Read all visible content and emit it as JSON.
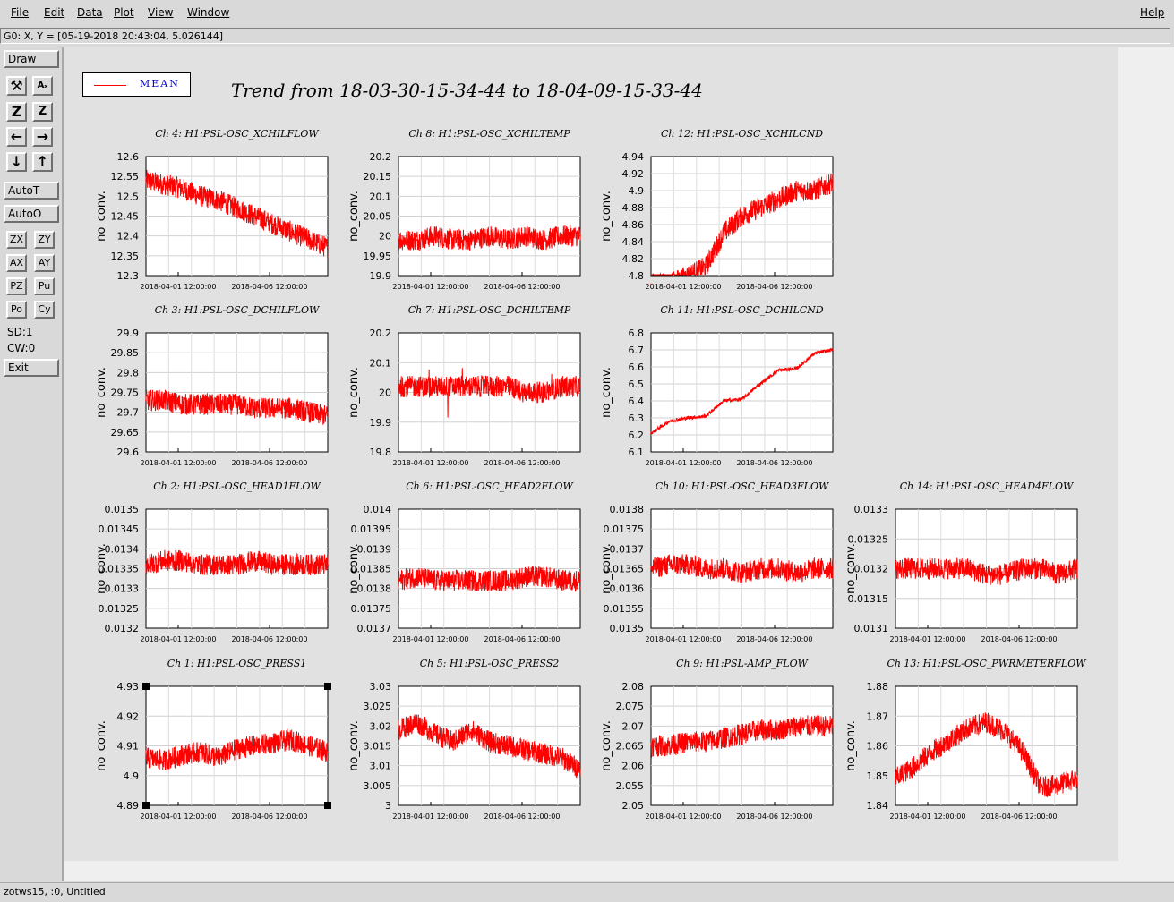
{
  "menubar": {
    "items": [
      "File",
      "Edit",
      "Data",
      "Plot",
      "View",
      "Window"
    ],
    "help": "Help"
  },
  "status": {
    "cursor_readout": "G0: X, Y = [05-19-2018 20:43:04, 5.026144]",
    "bottom": "zotws15, :0, Untitled"
  },
  "toolbar": {
    "draw": "Draw",
    "autot": "AutoT",
    "autoo": "AutoO",
    "small_buttons": [
      "ZX",
      "ZY",
      "AX",
      "AY",
      "PZ",
      "Pu",
      "Po",
      "Cy"
    ],
    "sd": "SD:1",
    "cw": "CW:0",
    "exit": "Exit",
    "icons": [
      "wrench-icon",
      "text-style-icon",
      "zoom-in-icon",
      "zoom-out-icon",
      "arrow-left-icon",
      "arrow-right-icon",
      "arrow-down-icon",
      "arrow-up-icon"
    ]
  },
  "legend": {
    "label": "MEAN",
    "color": "#ff0000"
  },
  "main_title": "Trend from 18-03-30-15-34-44 to 18-04-09-15-33-44",
  "colors": {
    "trace": "#ff0000",
    "accent": "#0000cc"
  },
  "chart_data": [
    {
      "type": "line",
      "title": "Ch 4: H1:PSL-OSC_XCHILFLOW",
      "ylabel": "no_conv.",
      "yticks": [
        "12.6",
        "12.55",
        "12.5",
        "12.45",
        "12.4",
        "12.35",
        "12.3"
      ],
      "ylim": [
        12.3,
        12.6
      ],
      "xticks": [
        "2018-04-01 12:00:00",
        "2018-04-06 12:00:00"
      ],
      "shape": "decline",
      "series": [
        {
          "name": "MEAN",
          "values": [
            12.54,
            12.53,
            12.52,
            12.5,
            12.49,
            12.47,
            12.45,
            12.43,
            12.41,
            12.39,
            12.37
          ]
        }
      ]
    },
    {
      "type": "line",
      "title": "Ch 8: H1:PSL-OSC_XCHILTEMP",
      "ylabel": "no_conv.",
      "yticks": [
        "20.2",
        "20.15",
        "20.1",
        "20.05",
        "20",
        "19.95",
        "19.9"
      ],
      "ylim": [
        19.9,
        20.2
      ],
      "xticks": [
        "2018-04-01 12:00:00",
        "2018-04-06 12:00:00"
      ],
      "shape": "flat",
      "series": [
        {
          "name": "MEAN",
          "values": [
            19.99,
            19.99,
            20.0,
            19.99,
            19.99,
            20.0,
            19.99,
            20.0,
            19.99,
            20.0,
            20.0
          ]
        }
      ]
    },
    {
      "type": "line",
      "title": "Ch 12: H1:PSL-OSC_XCHILCND",
      "ylabel": "no_conv.",
      "yticks": [
        "4.94",
        "4.92",
        "4.9",
        "4.88",
        "4.86",
        "4.84",
        "4.82",
        "4.8"
      ],
      "ylim": [
        4.8,
        4.94
      ],
      "xticks": [
        "2018-04-01 12:00:00",
        "2018-04-06 12:00:00"
      ],
      "shape": "rise",
      "series": [
        {
          "name": "MEAN",
          "values": [
            4.79,
            4.79,
            4.8,
            4.81,
            4.85,
            4.87,
            4.88,
            4.89,
            4.9,
            4.9,
            4.91
          ]
        }
      ]
    },
    {
      "type": "line",
      "title": "Ch 3: H1:PSL-OSC_DCHILFLOW",
      "ylabel": "no_conv.",
      "yticks": [
        "29.9",
        "29.85",
        "29.8",
        "29.75",
        "29.7",
        "29.65",
        "29.6"
      ],
      "ylim": [
        29.6,
        29.9
      ],
      "xticks": [
        "2018-04-01 12:00:00",
        "2018-04-06 12:00:00"
      ],
      "shape": "flat-down",
      "series": [
        {
          "name": "MEAN",
          "values": [
            29.73,
            29.73,
            29.72,
            29.72,
            29.72,
            29.72,
            29.71,
            29.71,
            29.71,
            29.7,
            29.69
          ]
        }
      ]
    },
    {
      "type": "line",
      "title": "Ch 7: H1:PSL-OSC_DCHILTEMP",
      "ylabel": "no_conv.",
      "yticks": [
        "20.2",
        "20.1",
        "20",
        "19.9",
        "19.8"
      ],
      "ylim": [
        19.8,
        20.2
      ],
      "xticks": [
        "2018-04-01 12:00:00",
        "2018-04-06 12:00:00"
      ],
      "shape": "spiky",
      "series": [
        {
          "name": "MEAN",
          "values": [
            20.02,
            20.02,
            20.02,
            20.02,
            20.02,
            20.02,
            20.02,
            20.0,
            20.0,
            20.02,
            20.02
          ]
        }
      ]
    },
    {
      "type": "line",
      "title": "Ch 11: H1:PSL-OSC_DCHILCND",
      "ylabel": "no_conv.",
      "yticks": [
        "6.8",
        "6.7",
        "6.6",
        "6.5",
        "6.4",
        "6.3",
        "6.2",
        "6.1"
      ],
      "ylim": [
        6.1,
        6.8
      ],
      "xticks": [
        "2018-04-01 12:00:00",
        "2018-04-06 12:00:00"
      ],
      "shape": "steps",
      "series": [
        {
          "name": "MEAN",
          "values": [
            6.21,
            6.28,
            6.3,
            6.31,
            6.4,
            6.41,
            6.5,
            6.58,
            6.59,
            6.68,
            6.7
          ]
        }
      ]
    },
    {
      "type": "line",
      "title": "Ch 2: H1:PSL-OSC_HEAD1FLOW",
      "ylabel": "no_conv.",
      "yticks": [
        "0.0135",
        "0.01345",
        "0.0134",
        "0.01335",
        "0.0133",
        "0.01325",
        "0.0132"
      ],
      "ylim": [
        0.0132,
        0.0135
      ],
      "xticks": [
        "2018-04-01 12:00:00",
        "2018-04-06 12:00:00"
      ],
      "shape": "noise",
      "series": [
        {
          "name": "MEAN",
          "values": [
            0.01336,
            0.01337,
            0.01337,
            0.01336,
            0.01336,
            0.01336,
            0.01337,
            0.01336,
            0.01336,
            0.01336,
            0.01336
          ]
        }
      ]
    },
    {
      "type": "line",
      "title": "Ch 6: H1:PSL-OSC_HEAD2FLOW",
      "ylabel": "no_conv.",
      "yticks": [
        "0.014",
        "0.01395",
        "0.0139",
        "0.01385",
        "0.0138",
        "0.01375",
        "0.0137"
      ],
      "ylim": [
        0.0137,
        0.014
      ],
      "xticks": [
        "2018-04-01 12:00:00",
        "2018-04-06 12:00:00"
      ],
      "shape": "noise",
      "series": [
        {
          "name": "MEAN",
          "values": [
            0.01382,
            0.01383,
            0.01382,
            0.01382,
            0.01382,
            0.01382,
            0.01382,
            0.01383,
            0.01383,
            0.01382,
            0.01382
          ]
        }
      ]
    },
    {
      "type": "line",
      "title": "Ch 10: H1:PSL-OSC_HEAD3FLOW",
      "ylabel": "no_conv.",
      "yticks": [
        "0.0138",
        "0.01375",
        "0.0137",
        "0.01365",
        "0.0136",
        "0.01355",
        "0.0135"
      ],
      "ylim": [
        0.0135,
        0.0138
      ],
      "xticks": [
        "2018-04-01 12:00:00",
        "2018-04-06 12:00:00"
      ],
      "shape": "noise",
      "series": [
        {
          "name": "MEAN",
          "values": [
            0.01365,
            0.01366,
            0.01366,
            0.01365,
            0.01365,
            0.01364,
            0.01365,
            0.01365,
            0.01364,
            0.01365,
            0.01365
          ]
        }
      ]
    },
    {
      "type": "line",
      "title": "Ch 14: H1:PSL-OSC_HEAD4FLOW",
      "ylabel": "no_conv.",
      "yticks": [
        "0.0133",
        "0.01325",
        "0.0132",
        "0.01315",
        "0.0131"
      ],
      "ylim": [
        0.0131,
        0.0133
      ],
      "xticks": [
        "2018-04-01 12:00:00",
        "2018-04-06 12:00:00"
      ],
      "shape": "noise",
      "series": [
        {
          "name": "MEAN",
          "values": [
            0.0132,
            0.0132,
            0.0132,
            0.0132,
            0.0132,
            0.01319,
            0.01319,
            0.0132,
            0.0132,
            0.01319,
            0.0132
          ]
        }
      ]
    },
    {
      "type": "line",
      "title": "Ch 1: H1:PSL-OSC_PRESS1",
      "ylabel": "no_conv.",
      "yticks": [
        "4.93",
        "4.92",
        "4.91",
        "4.9",
        "4.89"
      ],
      "ylim": [
        4.89,
        4.93
      ],
      "xticks": [
        "2018-04-01 12:00:00",
        "2018-04-06 12:00:00"
      ],
      "shape": "wavy",
      "series": [
        {
          "name": "MEAN",
          "values": [
            4.906,
            4.905,
            4.907,
            4.908,
            4.906,
            4.909,
            4.91,
            4.911,
            4.912,
            4.91,
            4.908
          ]
        }
      ]
    },
    {
      "type": "line",
      "title": "Ch 5: H1:PSL-OSC_PRESS2",
      "ylabel": "no_conv.",
      "yticks": [
        "3.03",
        "3.025",
        "3.02",
        "3.015",
        "3.01",
        "3.005",
        "3"
      ],
      "ylim": [
        3.0,
        3.03
      ],
      "xticks": [
        "2018-04-01 12:00:00",
        "2018-04-06 12:00:00"
      ],
      "shape": "decline",
      "series": [
        {
          "name": "MEAN",
          "values": [
            3.019,
            3.021,
            3.018,
            3.016,
            3.019,
            3.016,
            3.015,
            3.014,
            3.013,
            3.012,
            3.009
          ]
        }
      ]
    },
    {
      "type": "line",
      "title": "Ch 9: H1:PSL-AMP_FLOW",
      "ylabel": "no_conv.",
      "yticks": [
        "2.08",
        "2.075",
        "2.07",
        "2.065",
        "2.06",
        "2.055",
        "2.05"
      ],
      "ylim": [
        2.05,
        2.08
      ],
      "xticks": [
        "2018-04-01 12:00:00",
        "2018-04-06 12:00:00"
      ],
      "shape": "rise",
      "series": [
        {
          "name": "MEAN",
          "values": [
            2.065,
            2.065,
            2.066,
            2.066,
            2.067,
            2.068,
            2.069,
            2.069,
            2.07,
            2.07,
            2.07
          ]
        }
      ]
    },
    {
      "type": "line",
      "title": "Ch 13: H1:PSL-OSC_PWRMETERFLOW",
      "ylabel": "no_conv.",
      "yticks": [
        "1.88",
        "1.87",
        "1.86",
        "1.85",
        "1.84"
      ],
      "ylim": [
        1.84,
        1.88
      ],
      "xticks": [
        "2018-04-01 12:00:00",
        "2018-04-06 12:00:00"
      ],
      "shape": "hump",
      "series": [
        {
          "name": "MEAN",
          "values": [
            1.849,
            1.853,
            1.858,
            1.862,
            1.866,
            1.868,
            1.865,
            1.858,
            1.846,
            1.847,
            1.849
          ]
        }
      ]
    }
  ]
}
